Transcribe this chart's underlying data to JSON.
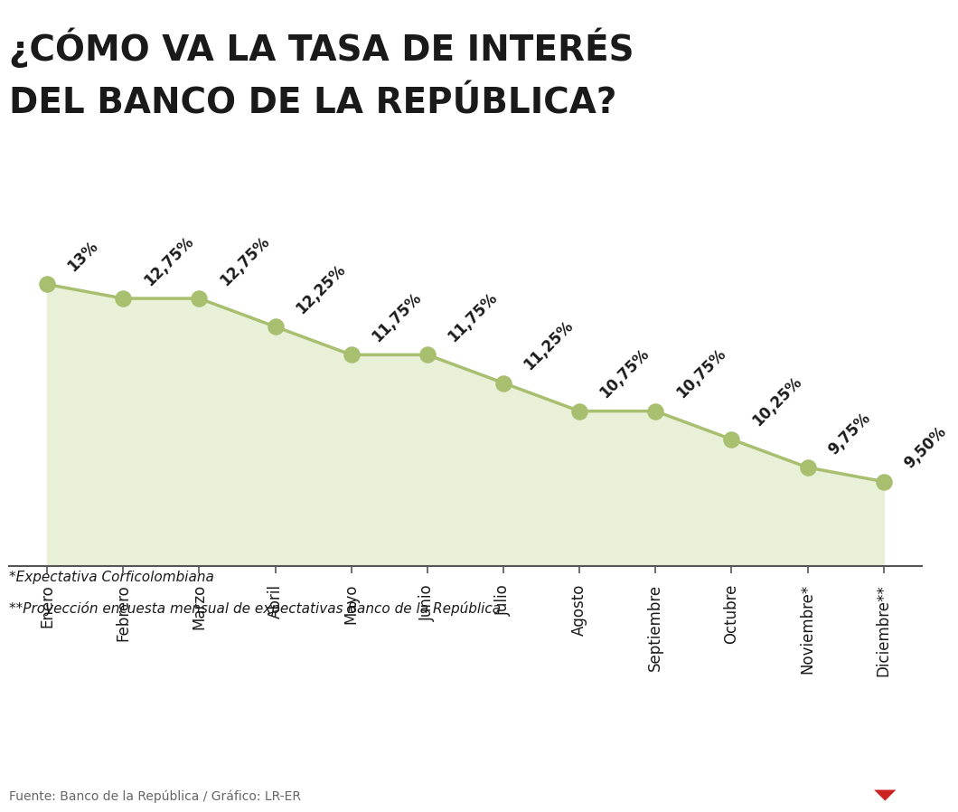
{
  "title_line1": "¿CÓMO VA LA TASA DE INTERÉS",
  "title_line2": "DEL BANCO DE LA REPÚBLICA?",
  "months": [
    "Enero",
    "Febrero",
    "Marzo",
    "Abril",
    "Mayo",
    "Junio",
    "Julio",
    "Agosto",
    "Septiembre",
    "Octubre",
    "Noviembre*",
    "Diciembre**"
  ],
  "values": [
    13.0,
    12.75,
    12.75,
    12.25,
    11.75,
    11.75,
    11.25,
    10.75,
    10.75,
    10.25,
    9.75,
    9.5
  ],
  "labels": [
    "13%",
    "12,75%",
    "12,75%",
    "12,25%",
    "11,75%",
    "11,75%",
    "11,25%",
    "10,75%",
    "10,75%",
    "10,25%",
    "9,75%",
    "9,50%"
  ],
  "line_color": "#a8bf6f",
  "fill_color": "#e8f0d8",
  "marker_color": "#a8bf6f",
  "bg_color": "#ffffff",
  "label_color": "#1a1a1a",
  "axis_color": "#555555",
  "note1": "*Expectativa Corficolombiana",
  "note2": "**Proyección encuesta mensual de expectativas Banco de la República",
  "source": "Fuente: Banco de la República / Gráfico: LR-ER",
  "lr_box_color": "#cc2222",
  "title_bar_color": "#1a1a1a",
  "ylim_min": 8.0,
  "ylim_max": 14.5,
  "title_fontsize": 28,
  "label_fontsize": 12,
  "month_fontsize": 12,
  "note_fontsize": 11,
  "source_fontsize": 10
}
